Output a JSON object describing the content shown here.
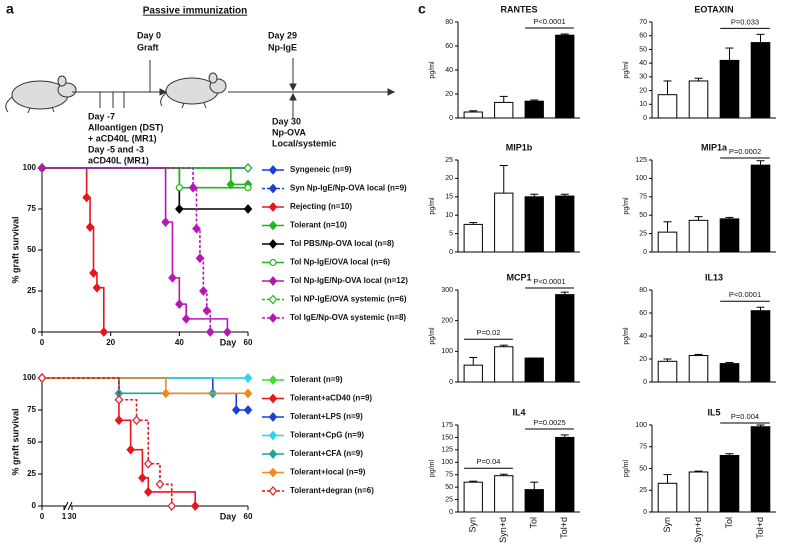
{
  "panel_labels": [
    "a",
    "c"
  ],
  "schematic": {
    "title": "Passive immunization",
    "day0": [
      "Day 0",
      "Graft"
    ],
    "day29": [
      "Day 29",
      "Np-IgE"
    ],
    "day_minus7": [
      "Day -7",
      "Alloantigen (DST)",
      "+ aCD40L (MR1)",
      "Day -5 and -3",
      "aCD40L (MR1)"
    ],
    "day30": [
      "Day 30",
      "Np-OVA",
      "Local/systemic"
    ]
  },
  "chart_data": [
    {
      "type": "survival",
      "ylabel": "% graft survival",
      "xlabel": "Day",
      "xlim": [
        0,
        60
      ],
      "xticks": [
        0,
        20,
        40,
        60
      ],
      "ylim": [
        0,
        100
      ],
      "yticks": [
        0,
        25,
        50,
        75,
        100
      ],
      "legend": "right",
      "series": [
        {
          "name": "Syngeneic (n=9)",
          "color": "#1c3fd6",
          "marker": "diamond",
          "x": [
            0,
            60
          ],
          "values": [
            100,
            100
          ]
        },
        {
          "name": "Syn Np-IgE/Np-OVA local (n=9)",
          "color": "#1c3fd6",
          "marker": "diamond",
          "dash": true,
          "x": [
            0,
            60
          ],
          "values": [
            100,
            100
          ]
        },
        {
          "name": "Rejecting (n=10)",
          "color": "#e8141e",
          "marker": "diamond",
          "x": [
            0,
            13,
            14,
            15,
            16,
            18
          ],
          "values": [
            100,
            82,
            64,
            36,
            27,
            0
          ]
        },
        {
          "name": "Tolerant (n=10)",
          "color": "#22b51f",
          "marker": "diamond",
          "x": [
            0,
            55,
            60
          ],
          "values": [
            100,
            90,
            90
          ]
        },
        {
          "name": "Tol PBS/Np-OVA local (n=8)",
          "color": "#000000",
          "marker": "diamond",
          "x": [
            0,
            40,
            60
          ],
          "values": [
            100,
            75,
            75
          ]
        },
        {
          "name": "Tol Np-IgE/OVA local (n=6)",
          "color": "#22b51f",
          "marker": "circle",
          "open": true,
          "x": [
            0,
            40,
            60
          ],
          "values": [
            100,
            88,
            88
          ]
        },
        {
          "name": "Tol Np-IgE/Np-OVA local (n=12)",
          "color": "#b418b4",
          "marker": "diamond",
          "x": [
            0,
            36,
            38,
            40,
            42,
            54
          ],
          "values": [
            100,
            67,
            33,
            17,
            8,
            0
          ]
        },
        {
          "name": "Tol NP-IgE/OVA systemic (n=6)",
          "color": "#22b51f",
          "marker": "diamond",
          "open": true,
          "dash": true,
          "x": [
            0,
            60
          ],
          "values": [
            100,
            100
          ]
        },
        {
          "name": "Tol IgE/Np-OVA systemic (n=8)",
          "color": "#b418b4",
          "marker": "diamond",
          "dash": true,
          "x": [
            0,
            44,
            45,
            46,
            47,
            48,
            49
          ],
          "values": [
            100,
            88,
            63,
            45,
            25,
            13,
            0
          ]
        }
      ]
    },
    {
      "type": "survival",
      "ylabel": "% graft survival",
      "xlabel": "Day",
      "xlim": [
        0,
        60
      ],
      "xticks": [
        0,
        1,
        30,
        60
      ],
      "xbreak": [
        1,
        30
      ],
      "ylim": [
        0,
        100
      ],
      "yticks": [
        0,
        25,
        50,
        75,
        100
      ],
      "legend": "right",
      "series": [
        {
          "name": "Tolerant (n=9)",
          "color": "#3fdc3a",
          "marker": "diamond",
          "x": [
            0,
            60
          ],
          "values": [
            100,
            100
          ]
        },
        {
          "name": "Tolerant+aCD40 (n=9)",
          "color": "#e8141e",
          "marker": "diamond",
          "x": [
            0,
            38,
            40,
            42,
            43,
            51
          ],
          "values": [
            100,
            67,
            44,
            22,
            11,
            0
          ]
        },
        {
          "name": "Tolerant+LPS (n=9)",
          "color": "#1c3fd6",
          "marker": "diamond",
          "x": [
            0,
            54,
            58,
            60
          ],
          "values": [
            100,
            88,
            75,
            75
          ]
        },
        {
          "name": "Tolerant+CpG (n=9)",
          "color": "#2fd6e8",
          "marker": "diamond",
          "x": [
            0,
            60
          ],
          "values": [
            100,
            100
          ]
        },
        {
          "name": "Tolerant+CFA (n=9)",
          "color": "#1aa6a0",
          "marker": "diamond",
          "x": [
            0,
            38,
            54
          ],
          "values": [
            100,
            88,
            88
          ]
        },
        {
          "name": "Tolerant+local (n=9)",
          "color": "#f08a1c",
          "marker": "diamond",
          "x": [
            0,
            46,
            60
          ],
          "values": [
            100,
            88,
            88
          ]
        },
        {
          "name": "Tolerant+degran (n=6)",
          "color": "#e8141e",
          "marker": "diamond",
          "dash": true,
          "open": true,
          "x": [
            0,
            38,
            41,
            43,
            45,
            47
          ],
          "values": [
            100,
            83,
            67,
            33,
            17,
            0
          ]
        }
      ]
    },
    {
      "type": "bar",
      "title": "RANTES",
      "ylabel": "pg/ml",
      "ylim": [
        0,
        80
      ],
      "yticks": [
        0,
        20,
        40,
        60,
        80
      ],
      "colors": [
        "#ffffff",
        "#ffffff",
        "#000000",
        "#000000"
      ],
      "values": [
        5,
        13,
        14,
        69
      ],
      "errors": [
        1,
        5,
        1,
        1
      ],
      "annotations": [
        {
          "text": "P<0.0001",
          "span": [
            2,
            3
          ]
        }
      ]
    },
    {
      "type": "bar",
      "title": "EOTAXIN",
      "ylabel": "pg/ml",
      "ylim": [
        0,
        70
      ],
      "yticks": [
        0,
        10,
        20,
        30,
        40,
        50,
        60,
        70
      ],
      "colors": [
        "#ffffff",
        "#ffffff",
        "#000000",
        "#000000"
      ],
      "values": [
        17,
        27,
        42,
        55
      ],
      "errors": [
        10,
        2,
        9,
        6
      ],
      "annotations": [
        {
          "text": "P=0.033",
          "span": [
            2,
            3
          ]
        }
      ]
    },
    {
      "type": "bar",
      "title": "MIP1b",
      "ylabel": "pg/ml",
      "ylim": [
        0,
        25
      ],
      "yticks": [
        0,
        5,
        10,
        15,
        20,
        25
      ],
      "colors": [
        "#ffffff",
        "#ffffff",
        "#000000",
        "#000000"
      ],
      "values": [
        7.5,
        16,
        15,
        15.2
      ],
      "errors": [
        0.5,
        7.5,
        0.7,
        0.5
      ],
      "annotations": []
    },
    {
      "type": "bar",
      "title": "MIP1a",
      "ylabel": "pg/ml",
      "ylim": [
        0,
        125
      ],
      "yticks": [
        0,
        25,
        50,
        75,
        100,
        125
      ],
      "colors": [
        "#ffffff",
        "#ffffff",
        "#000000",
        "#000000"
      ],
      "values": [
        27,
        43,
        45,
        118
      ],
      "errors": [
        14,
        5,
        2,
        6
      ],
      "annotations": [
        {
          "text": "P=0.0002",
          "span": [
            2,
            3
          ]
        }
      ]
    },
    {
      "type": "bar",
      "title": "MCP1",
      "ylabel": "pg/ml",
      "ylim": [
        0,
        300
      ],
      "yticks": [
        0,
        100,
        200,
        300
      ],
      "colors": [
        "#ffffff",
        "#ffffff",
        "#000000",
        "#000000"
      ],
      "values": [
        55,
        115,
        78,
        285
      ],
      "errors": [
        25,
        5,
        0,
        8
      ],
      "annotations": [
        {
          "text": "P=0.02",
          "span": [
            0,
            1
          ]
        },
        {
          "text": "P<0.0001",
          "span": [
            2,
            3
          ]
        }
      ]
    },
    {
      "type": "bar",
      "title": "IL13",
      "ylabel": "pg/ml",
      "ylim": [
        0,
        80
      ],
      "yticks": [
        0,
        20,
        40,
        60,
        80
      ],
      "colors": [
        "#ffffff",
        "#ffffff",
        "#000000",
        "#000000"
      ],
      "values": [
        18,
        23,
        16,
        62
      ],
      "errors": [
        2,
        1,
        1,
        3
      ],
      "annotations": [
        {
          "text": "P<0.0001",
          "span": [
            2,
            3
          ]
        }
      ]
    },
    {
      "type": "bar",
      "title": "IL4",
      "ylabel": "pg/ml",
      "ylim": [
        0,
        175
      ],
      "yticks": [
        0,
        25,
        50,
        75,
        100,
        125,
        150,
        175
      ],
      "categories": [
        "Syn",
        "Syn+d",
        "Tol",
        "Tol+d"
      ],
      "colors": [
        "#ffffff",
        "#ffffff",
        "#000000",
        "#000000"
      ],
      "values": [
        60,
        73,
        45,
        150
      ],
      "errors": [
        2,
        3,
        15,
        5
      ],
      "annotations": [
        {
          "text": "P=0.04",
          "span": [
            0,
            1
          ]
        },
        {
          "text": "P=0.0025",
          "span": [
            2,
            3
          ]
        }
      ]
    },
    {
      "type": "bar",
      "title": "IL5",
      "ylabel": "pg/ml",
      "ylim": [
        0,
        100
      ],
      "yticks": [
        0,
        25,
        50,
        75,
        100
      ],
      "categories": [
        "Syn",
        "Syn+d",
        "Tol",
        "Tol+d"
      ],
      "colors": [
        "#ffffff",
        "#ffffff",
        "#000000",
        "#000000"
      ],
      "values": [
        33,
        46,
        65,
        98
      ],
      "errors": [
        10,
        1,
        2,
        2
      ],
      "annotations": [
        {
          "text": "P=0.004",
          "span": [
            2,
            3
          ]
        }
      ]
    }
  ]
}
